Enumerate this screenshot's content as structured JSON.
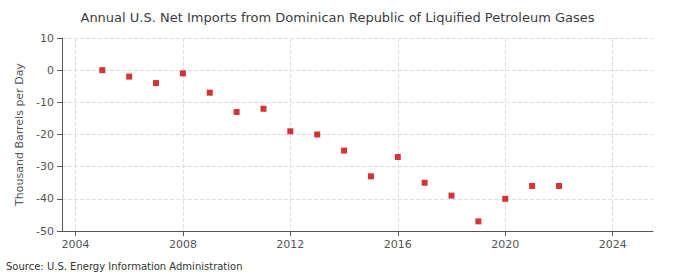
{
  "chart_data": {
    "type": "scatter",
    "title": "Annual U.S. Net Imports from Dominican Republic of Liquified Petroleum Gases",
    "ylabel": "Thousand Barrels per Day",
    "annotations": [
      "Source: U.S. Energy Information Administration"
    ],
    "x": [
      2005,
      2006,
      2007,
      2008,
      2009,
      2010,
      2011,
      2012,
      2013,
      2014,
      2015,
      2016,
      2017,
      2018,
      2019,
      2020,
      2021,
      2022
    ],
    "values": [
      0,
      -2,
      -4,
      -1,
      -7,
      -13,
      -12,
      -19,
      -20,
      -25,
      -33,
      -27,
      -35,
      -39,
      -47,
      -40,
      -36,
      -36
    ],
    "color": "#cc0000",
    "marker": "square",
    "xlim": [
      2003.5,
      2025.5
    ],
    "ylim": [
      -50,
      10
    ],
    "xticks": [
      2004,
      2008,
      2012,
      2016,
      2020,
      2024
    ],
    "yticks": [
      10,
      0,
      -10,
      -20,
      -30,
      -40,
      -50
    ],
    "grid": true
  }
}
